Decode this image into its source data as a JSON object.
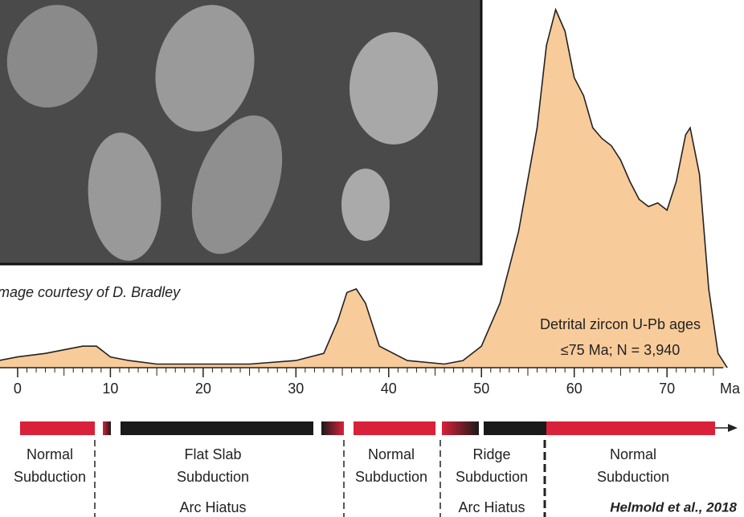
{
  "chart_data": {
    "type": "area",
    "x": [
      -2,
      0,
      3,
      5,
      7,
      8.5,
      10,
      12,
      15,
      20,
      25,
      30,
      33,
      34.5,
      35.5,
      36.5,
      37.5,
      39,
      42,
      46,
      48,
      50,
      52,
      54,
      56,
      57,
      58,
      59,
      60,
      61,
      62,
      63,
      64,
      65,
      66,
      67,
      68,
      69,
      70,
      71,
      72,
      72.5,
      73.5,
      74.5,
      75.5,
      76.5
    ],
    "values": [
      2,
      3,
      4,
      5,
      6,
      6,
      3,
      2,
      1,
      1,
      1,
      2,
      4,
      13,
      21,
      22,
      18,
      6,
      2,
      1,
      2,
      6,
      18,
      38,
      67,
      90,
      100,
      94,
      81,
      76,
      67,
      64,
      62,
      58,
      52,
      47,
      45,
      46,
      44,
      52,
      65,
      67,
      54,
      22,
      4,
      0
    ],
    "color": "#f8cb9a",
    "xlim": [
      -1.9,
      78.3
    ],
    "ylim": [
      0,
      100
    ],
    "xticks": [
      0,
      10,
      20,
      30,
      40,
      50,
      60,
      70
    ],
    "xlabel": "Ma",
    "annotations": [
      "Detrital zircon U-Pb ages",
      "≤75 Ma;  N = 3,940"
    ],
    "image_caption": "Image courtesy of D. Bradley"
  },
  "timeline": {
    "phases": [
      {
        "lines": [
          "Normal",
          "Subduction"
        ]
      },
      {
        "lines": [
          "Flat Slab",
          "Subduction",
          "Arc Hiatus"
        ]
      },
      {
        "lines": [
          "Normal",
          "Subduction"
        ]
      },
      {
        "lines": [
          "Ridge",
          "Subduction",
          "Arc Hiatus"
        ]
      },
      {
        "lines": [
          "Normal",
          "Subduction"
        ]
      }
    ],
    "credit": "Helmold et al., 2018"
  }
}
